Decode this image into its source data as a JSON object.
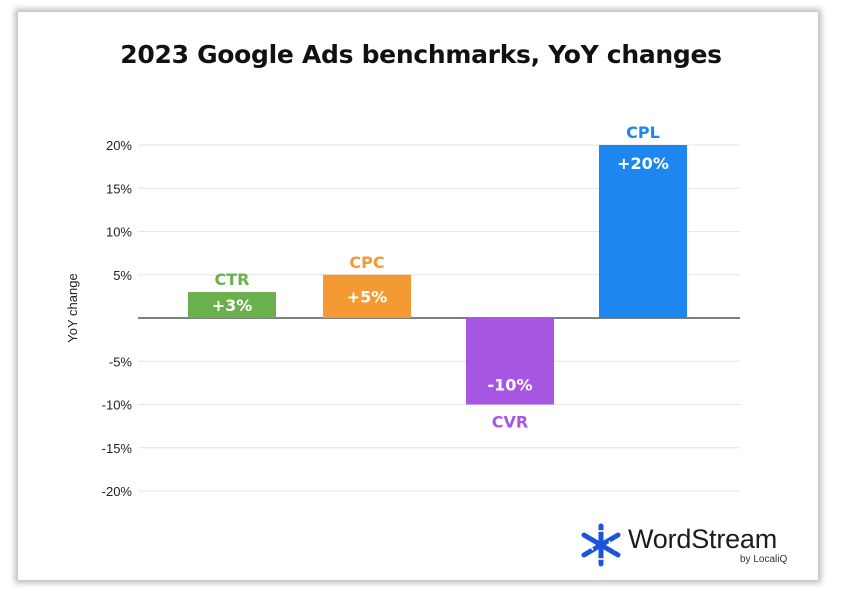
{
  "chart_data": {
    "type": "bar",
    "title": "2023 Google Ads benchmarks, YoY changes",
    "ylabel": "YoY change",
    "xlabel": "",
    "ylim": [
      -20,
      20
    ],
    "yticks": [
      20,
      15,
      10,
      5,
      -5,
      -10,
      -15,
      -20
    ],
    "ytick_labels": [
      "20%",
      "15%",
      "10%",
      "5%",
      "-5%",
      "-10%",
      "-15%",
      "-20%"
    ],
    "categories": [
      "CTR",
      "CPC",
      "CVR",
      "CPL"
    ],
    "values": [
      3,
      5,
      -10,
      20
    ],
    "value_labels": [
      "+3%",
      "+5%",
      "-10%",
      "+20%"
    ],
    "colors": [
      "#6ab04c",
      "#f39a35",
      "#a755e3",
      "#1e87ef"
    ],
    "grid": true
  },
  "brand": {
    "name": "WordStream",
    "tagline": "by LocaliQ",
    "color": "#1a56db"
  }
}
